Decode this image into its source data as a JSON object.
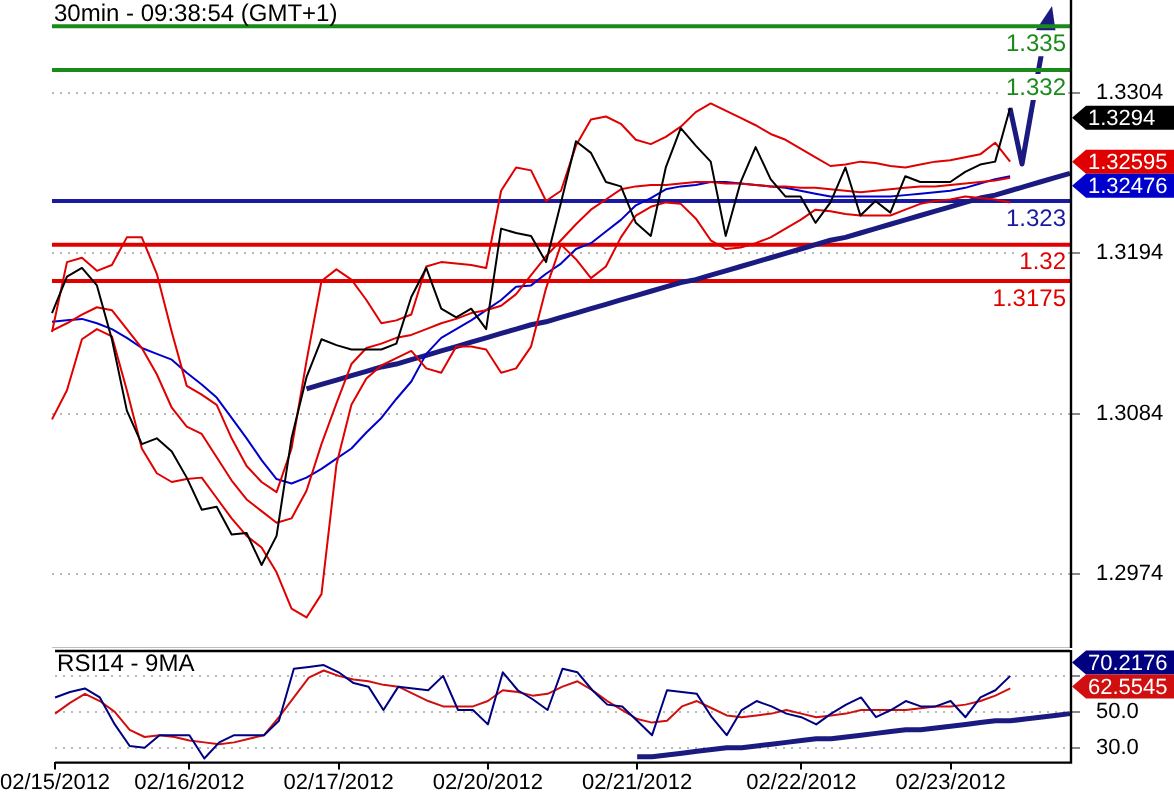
{
  "chart_data": [
    {
      "type": "line",
      "title": "30min - 09:38:54 (GMT+1)",
      "tick_labels": "y",
      "grid": "y",
      "ylim": [
        1.2923,
        1.3368
      ],
      "yticks": [
        1.2974,
        1.3084,
        1.3194,
        1.3304
      ],
      "categories": [
        null,
        null,
        null,
        null,
        null,
        null,
        null,
        null,
        null,
        null,
        null,
        null,
        null,
        null,
        null,
        null,
        null,
        null,
        null,
        null,
        null,
        null,
        null,
        null,
        null,
        null,
        null,
        null,
        null,
        null,
        null,
        null,
        null,
        null,
        null,
        null,
        null,
        null,
        null,
        null,
        null,
        null,
        null,
        null,
        null,
        null,
        null,
        null,
        null,
        null,
        null,
        null,
        null,
        null,
        null,
        null,
        null,
        null,
        null,
        null,
        null,
        null,
        null,
        null,
        null,
        null,
        null,
        null,
        null
      ],
      "series": [
        {
          "color": "#000000",
          "values": [
            1.3153,
            1.3178,
            1.3184,
            1.3172,
            1.3135,
            1.3086,
            1.3063,
            1.3067,
            1.3058,
            1.304,
            1.3018,
            1.302,
            1.3001,
            1.3002,
            1.298,
            1.3,
            1.3067,
            1.3109,
            1.3135,
            1.3131,
            1.3128,
            1.3128,
            1.3128,
            1.3132,
            1.3164,
            1.3184,
            1.3156,
            1.315,
            1.3156,
            1.3142,
            1.3211,
            1.3208,
            1.3206,
            1.3188,
            1.3229,
            1.3271,
            1.3263,
            1.3243,
            1.324,
            1.3215,
            1.3206,
            1.3253,
            1.328,
            1.3268,
            1.3257,
            1.3206,
            1.3243,
            1.3267,
            1.3245,
            1.3233,
            1.3233,
            1.3215,
            1.3229,
            1.3253,
            1.322,
            1.323,
            1.3222,
            1.3247,
            1.3243,
            1.3243,
            1.3243,
            1.325,
            1.3255,
            1.3257,
            1.3294,
            null,
            null,
            null,
            null
          ]
        },
        {
          "color": "#e00000",
          "values": [
            1.314,
            1.3188,
            1.3191,
            1.3182,
            1.3186,
            1.3205,
            1.3205,
            1.318,
            1.314,
            1.3103,
            1.3097,
            1.309,
            1.3067,
            1.3048,
            1.3037,
            1.303,
            1.306,
            1.312,
            1.3175,
            1.3183,
            1.3176,
            1.3162,
            1.3146,
            1.3148,
            1.3152,
            1.3185,
            1.3188,
            1.3187,
            1.3186,
            1.3184,
            1.3237,
            1.3253,
            1.3251,
            1.323,
            1.3237,
            1.3268,
            1.3286,
            1.3288,
            1.3283,
            1.3272,
            1.3269,
            1.3274,
            1.3281,
            1.3291,
            1.3297,
            1.3292,
            1.3287,
            1.3282,
            1.3276,
            1.3272,
            1.3266,
            1.326,
            1.3254,
            1.3255,
            1.3257,
            1.3256,
            1.3254,
            1.3253,
            1.3255,
            1.3257,
            1.3258,
            1.326,
            1.3262,
            1.327,
            1.3257,
            null,
            null,
            null,
            null
          ]
        },
        {
          "color": "#e00000",
          "values": [
            1.3141,
            1.3146,
            1.3152,
            1.3157,
            1.3155,
            1.3142,
            1.3129,
            1.3111,
            1.3088,
            1.3075,
            1.307,
            1.3054,
            1.3038,
            1.3025,
            1.3017,
            1.3009,
            1.3012,
            1.3031,
            1.3063,
            1.3091,
            1.3118,
            1.3129,
            1.3132,
            1.3136,
            1.3138,
            1.3142,
            1.3146,
            1.3149,
            1.3153,
            1.3155,
            1.3158,
            1.3166,
            1.3179,
            1.3192,
            1.3203,
            1.3214,
            1.3224,
            1.3231,
            1.3238,
            1.324,
            1.3241,
            1.3241,
            1.3242,
            1.3243,
            1.3243,
            1.3242,
            1.3242,
            1.3241,
            1.324,
            1.324,
            1.3239,
            1.3239,
            1.3238,
            1.3237,
            1.3236,
            1.3237,
            1.3238,
            1.3239,
            1.324,
            1.324,
            1.3241,
            1.3242,
            1.3243,
            1.3244,
            1.3246,
            null,
            null,
            null,
            null
          ]
        },
        {
          "color": "#e00000",
          "values": [
            1.308,
            1.31,
            1.3135,
            1.3142,
            1.3137,
            1.31,
            1.306,
            1.3043,
            1.3037,
            1.3039,
            1.304,
            1.3026,
            1.3012,
            1.3,
            1.2992,
            1.2975,
            1.295,
            1.2944,
            1.296,
            1.3049,
            1.309,
            1.3108,
            1.3117,
            1.3122,
            1.3127,
            1.3115,
            1.3112,
            1.313,
            1.313,
            1.3128,
            1.3112,
            1.3115,
            1.313,
            1.317,
            1.32,
            1.319,
            1.3177,
            1.3185,
            1.3205,
            1.322,
            1.3226,
            1.3229,
            1.3228,
            1.3218,
            1.3203,
            1.3197,
            1.3198,
            1.3201,
            1.3205,
            1.3211,
            1.3217,
            1.3224,
            1.3223,
            1.3221,
            1.322,
            1.322,
            1.322,
            1.3224,
            1.3228,
            1.323,
            1.3231,
            1.3233,
            1.3232,
            1.3231,
            1.3229,
            null,
            null,
            null,
            null
          ]
        },
        {
          "color": "#0000cc",
          "values": [
            1.3147,
            1.3148,
            1.3149,
            1.3146,
            1.3142,
            1.3136,
            1.3129,
            1.3125,
            1.3121,
            1.3112,
            1.3104,
            1.3095,
            1.3081,
            1.3067,
            1.3052,
            1.3039,
            1.3036,
            1.304,
            1.3046,
            1.3053,
            1.306,
            1.3071,
            1.3081,
            1.3094,
            1.3106,
            1.3125,
            1.3136,
            1.3142,
            1.3148,
            1.3155,
            1.3162,
            1.3171,
            1.3172,
            1.318,
            1.3187,
            1.3197,
            1.3201,
            1.3209,
            1.3217,
            1.3227,
            1.3232,
            1.3238,
            1.324,
            1.3241,
            1.3243,
            1.3243,
            1.3242,
            1.3241,
            1.324,
            1.3239,
            1.3237,
            1.3235,
            1.3233,
            1.3233,
            1.3233,
            1.3233,
            1.3233,
            1.3234,
            1.3235,
            1.3236,
            1.3237,
            1.3239,
            1.3242,
            1.3245,
            1.3247,
            null,
            null,
            null,
            null
          ]
        },
        {
          "color": "#1a1a80",
          "values": [
            null,
            null,
            null,
            null,
            null,
            null,
            null,
            null,
            null,
            null,
            null,
            null,
            null,
            null,
            null,
            null,
            null,
            1.3101,
            1.3104,
            1.3107,
            1.311,
            1.3113,
            1.3116,
            1.3118,
            1.3121,
            1.3124,
            1.3127,
            1.313,
            1.3133,
            1.3136,
            1.3139,
            1.3142,
            1.3145,
            1.3147,
            1.315,
            1.3153,
            1.3156,
            1.3159,
            1.3162,
            1.3165,
            1.3168,
            1.3171,
            1.3174,
            1.3176,
            1.3179,
            1.3182,
            1.3185,
            1.3188,
            1.3191,
            1.3194,
            1.3197,
            1.32,
            1.3203,
            1.3205,
            1.3208,
            1.3211,
            1.3214,
            1.3217,
            1.322,
            1.3223,
            1.3226,
            1.3229,
            1.3232,
            1.3234,
            1.3237,
            1.324,
            1.3243,
            1.3246,
            1.3249
          ]
        }
      ],
      "ref_lines": [
        {
          "axis": "y",
          "value": 1.335,
          "label": "1.335",
          "color": "#1a8a1a"
        },
        {
          "axis": "y",
          "value": 1.332,
          "label": "1.332",
          "color": "#1a8a1a"
        },
        {
          "axis": "y",
          "value": 1.323,
          "label": "1.323",
          "color": "#1a1aa0"
        },
        {
          "axis": "y",
          "value": 1.32,
          "label": "1.32",
          "color": "#e00000"
        },
        {
          "axis": "y",
          "value": 1.3175,
          "label": "1.3175",
          "color": "#e00000"
        }
      ],
      "annotations": [
        "1.3294",
        "1.32595",
        "1.32476"
      ]
    },
    {
      "type": "line",
      "title": "RSI14 - 9MA",
      "grid": "y",
      "ylim": [
        22.3,
        84.4
      ],
      "yticks": [
        {
          "value": 30,
          "label": "30.0"
        },
        {
          "value": 50,
          "label": "50.0"
        },
        {
          "value": 70,
          "label": null
        }
      ],
      "categories": [
        "02/15/2012",
        null,
        null,
        null,
        null,
        null,
        null,
        null,
        null,
        "02/16/2012",
        null,
        null,
        null,
        null,
        null,
        null,
        null,
        null,
        null,
        "02/17/2012",
        null,
        null,
        null,
        null,
        null,
        null,
        null,
        null,
        null,
        "02/20/2012",
        null,
        null,
        null,
        null,
        null,
        null,
        null,
        null,
        null,
        "02/21/2012",
        null,
        null,
        null,
        null,
        null,
        null,
        null,
        null,
        null,
        null,
        "02/22/2012",
        null,
        null,
        null,
        null,
        null,
        null,
        null,
        null,
        null,
        "02/23/2012",
        null,
        null,
        null,
        null,
        null,
        null,
        null,
        null
      ],
      "series": [
        {
          "color": "#000080",
          "values": [
            58,
            61,
            63,
            58,
            43,
            31,
            30,
            37,
            37,
            37,
            24,
            33,
            37,
            37,
            37,
            45,
            74,
            75,
            76,
            72,
            66,
            64,
            51,
            64,
            63,
            62,
            70,
            51,
            51,
            43,
            72,
            62,
            57,
            51,
            74,
            72,
            62,
            54,
            53,
            45,
            37,
            62,
            61,
            60,
            47,
            37,
            51,
            56,
            53,
            49,
            47,
            43,
            49,
            54,
            58,
            47,
            51,
            56,
            53,
            53,
            56,
            47,
            58,
            62,
            70,
            null,
            null,
            null,
            null
          ]
        },
        {
          "color": "#d01010",
          "values": [
            49,
            55,
            60,
            56,
            50,
            40,
            36,
            37,
            36,
            34,
            33,
            32,
            33,
            35,
            37,
            47,
            58,
            69,
            73,
            70,
            68,
            67,
            65,
            64,
            60,
            56,
            53,
            53,
            53,
            56,
            62,
            61,
            59,
            60,
            64,
            67,
            62,
            56,
            51,
            46,
            44,
            45,
            53,
            56,
            52,
            48,
            47,
            48,
            49,
            51,
            49,
            47,
            48,
            49,
            51,
            51,
            51,
            51,
            52,
            53,
            53,
            54,
            56,
            59,
            63,
            null,
            null,
            null,
            null
          ]
        },
        {
          "color": "#1a1a80",
          "values": [
            null,
            null,
            null,
            null,
            null,
            null,
            null,
            null,
            null,
            null,
            null,
            null,
            null,
            null,
            null,
            null,
            null,
            null,
            null,
            null,
            null,
            null,
            null,
            null,
            null,
            null,
            null,
            null,
            null,
            null,
            null,
            null,
            null,
            null,
            null,
            null,
            null,
            null,
            null,
            25,
            25,
            26,
            27,
            28,
            29,
            30,
            30,
            31,
            32,
            33,
            34,
            35,
            35,
            36,
            37,
            38,
            39,
            40,
            40,
            41,
            42,
            43,
            44,
            45,
            45,
            46,
            47,
            48,
            49
          ]
        }
      ],
      "annotations": [
        "70.2176",
        "62.5545"
      ]
    }
  ]
}
